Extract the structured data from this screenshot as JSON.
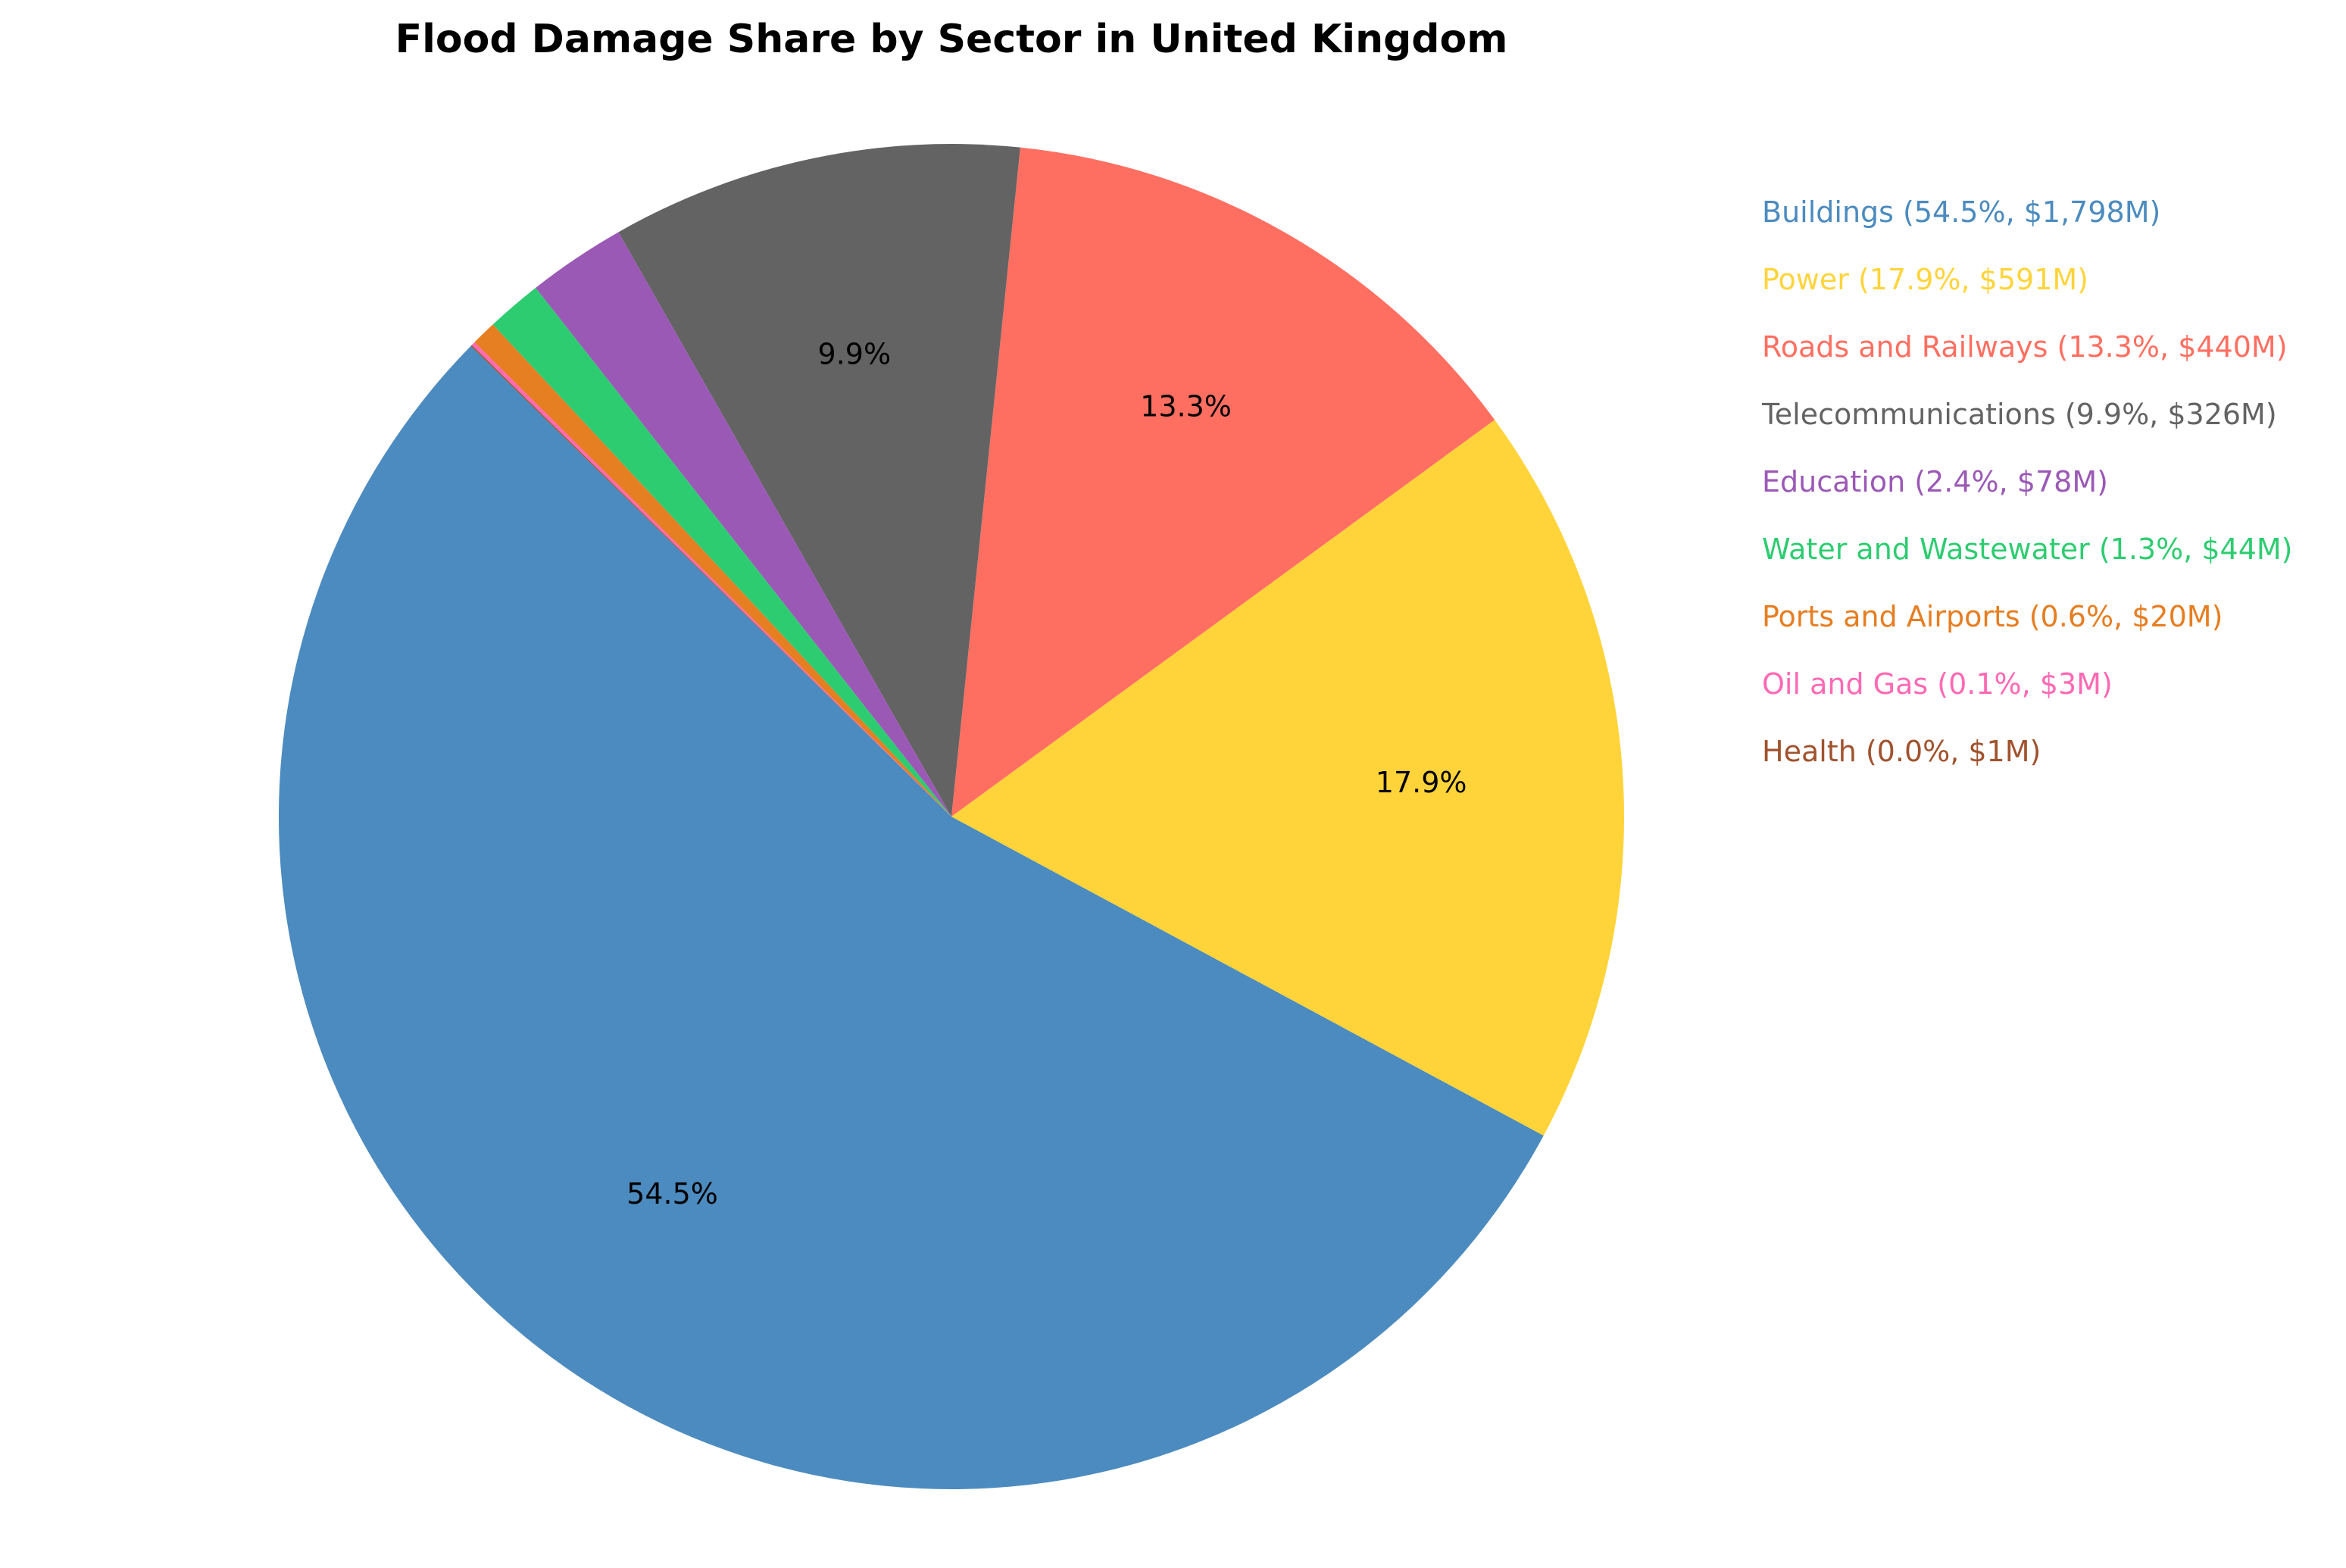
{
  "chart_data": {
    "type": "pie",
    "title": "Flood Damage Share by Sector in United Kingdom",
    "legend_position": "right",
    "slices": [
      {
        "label": "Buildings",
        "percent": 54.5,
        "value_musd": 1798,
        "pct_text": "54.5%",
        "legend_text": "Buildings (54.5%, $1,798M)",
        "color": "#4c8bbf"
      },
      {
        "label": "Power",
        "percent": 17.9,
        "value_musd": 591,
        "pct_text": "17.9%",
        "legend_text": "Power (17.9%, $591M)",
        "color": "#ffd43b"
      },
      {
        "label": "Roads and Railways",
        "percent": 13.3,
        "value_musd": 440,
        "pct_text": "13.3%",
        "legend_text": "Roads and Railways (13.3%, $440M)",
        "color": "#ff6f61"
      },
      {
        "label": "Telecommunications",
        "percent": 9.9,
        "value_musd": 326,
        "pct_text": "9.9%",
        "legend_text": "Telecommunications (9.9%, $326M)",
        "color": "#636363"
      },
      {
        "label": "Education",
        "percent": 2.4,
        "value_musd": 78,
        "pct_text": "",
        "legend_text": "Education (2.4%, $78M)",
        "color": "#9b59b6"
      },
      {
        "label": "Water and Wastewater",
        "percent": 1.3,
        "value_musd": 44,
        "pct_text": "",
        "legend_text": "Water and Wastewater (1.3%, $44M)",
        "color": "#2ecc71"
      },
      {
        "label": "Ports and Airports",
        "percent": 0.6,
        "value_musd": 20,
        "pct_text": "",
        "legend_text": "Ports and Airports (0.6%, $20M)",
        "color": "#e67e22"
      },
      {
        "label": "Oil and Gas",
        "percent": 0.1,
        "value_musd": 3,
        "pct_text": "",
        "legend_text": "Oil and Gas (0.1%, $3M)",
        "color": "#ff69b4"
      },
      {
        "label": "Health",
        "percent": 0.0,
        "value_musd": 1,
        "pct_text": "",
        "legend_text": "Health (0.0%, $1M)",
        "color": "#a0522d"
      }
    ]
  }
}
